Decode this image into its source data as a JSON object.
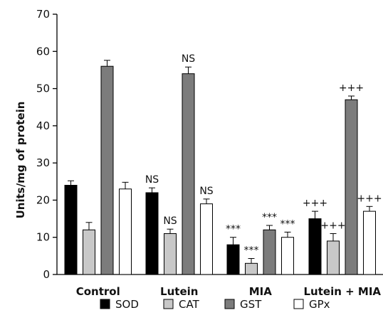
{
  "chart_data": {
    "type": "bar",
    "title": "",
    "xlabel": "",
    "ylabel": "Units/mg of protein",
    "ylim": [
      0,
      70
    ],
    "yticks": [
      0,
      10,
      20,
      30,
      40,
      50,
      60,
      70
    ],
    "grid": false,
    "legend_position": "bottom",
    "categories": [
      "Control",
      "Lutein",
      "MIA",
      "Lutein + MIA"
    ],
    "series": [
      {
        "name": "SOD",
        "color": "#000000",
        "values": [
          24,
          22,
          8,
          15
        ],
        "errors": [
          1.2,
          1.3,
          2.0,
          2.0
        ],
        "annotations": [
          "",
          "NS",
          "***",
          "+++"
        ]
      },
      {
        "name": "CAT",
        "color": "#c8c8c8",
        "values": [
          12,
          11,
          3,
          9
        ],
        "errors": [
          2.0,
          1.2,
          1.3,
          2.0
        ],
        "annotations": [
          "",
          "NS",
          "***",
          "+++"
        ]
      },
      {
        "name": "GST",
        "color": "#7c7c7c",
        "values": [
          56,
          54,
          12,
          47
        ],
        "errors": [
          1.6,
          1.8,
          1.2,
          1.0
        ],
        "annotations": [
          "",
          "NS",
          "***",
          "+++"
        ]
      },
      {
        "name": "GPx",
        "color": "#ffffff",
        "values": [
          23,
          19,
          10,
          17
        ],
        "errors": [
          1.8,
          1.3,
          1.4,
          1.3
        ],
        "annotations": [
          "",
          "NS",
          "***",
          "+++"
        ]
      }
    ]
  }
}
